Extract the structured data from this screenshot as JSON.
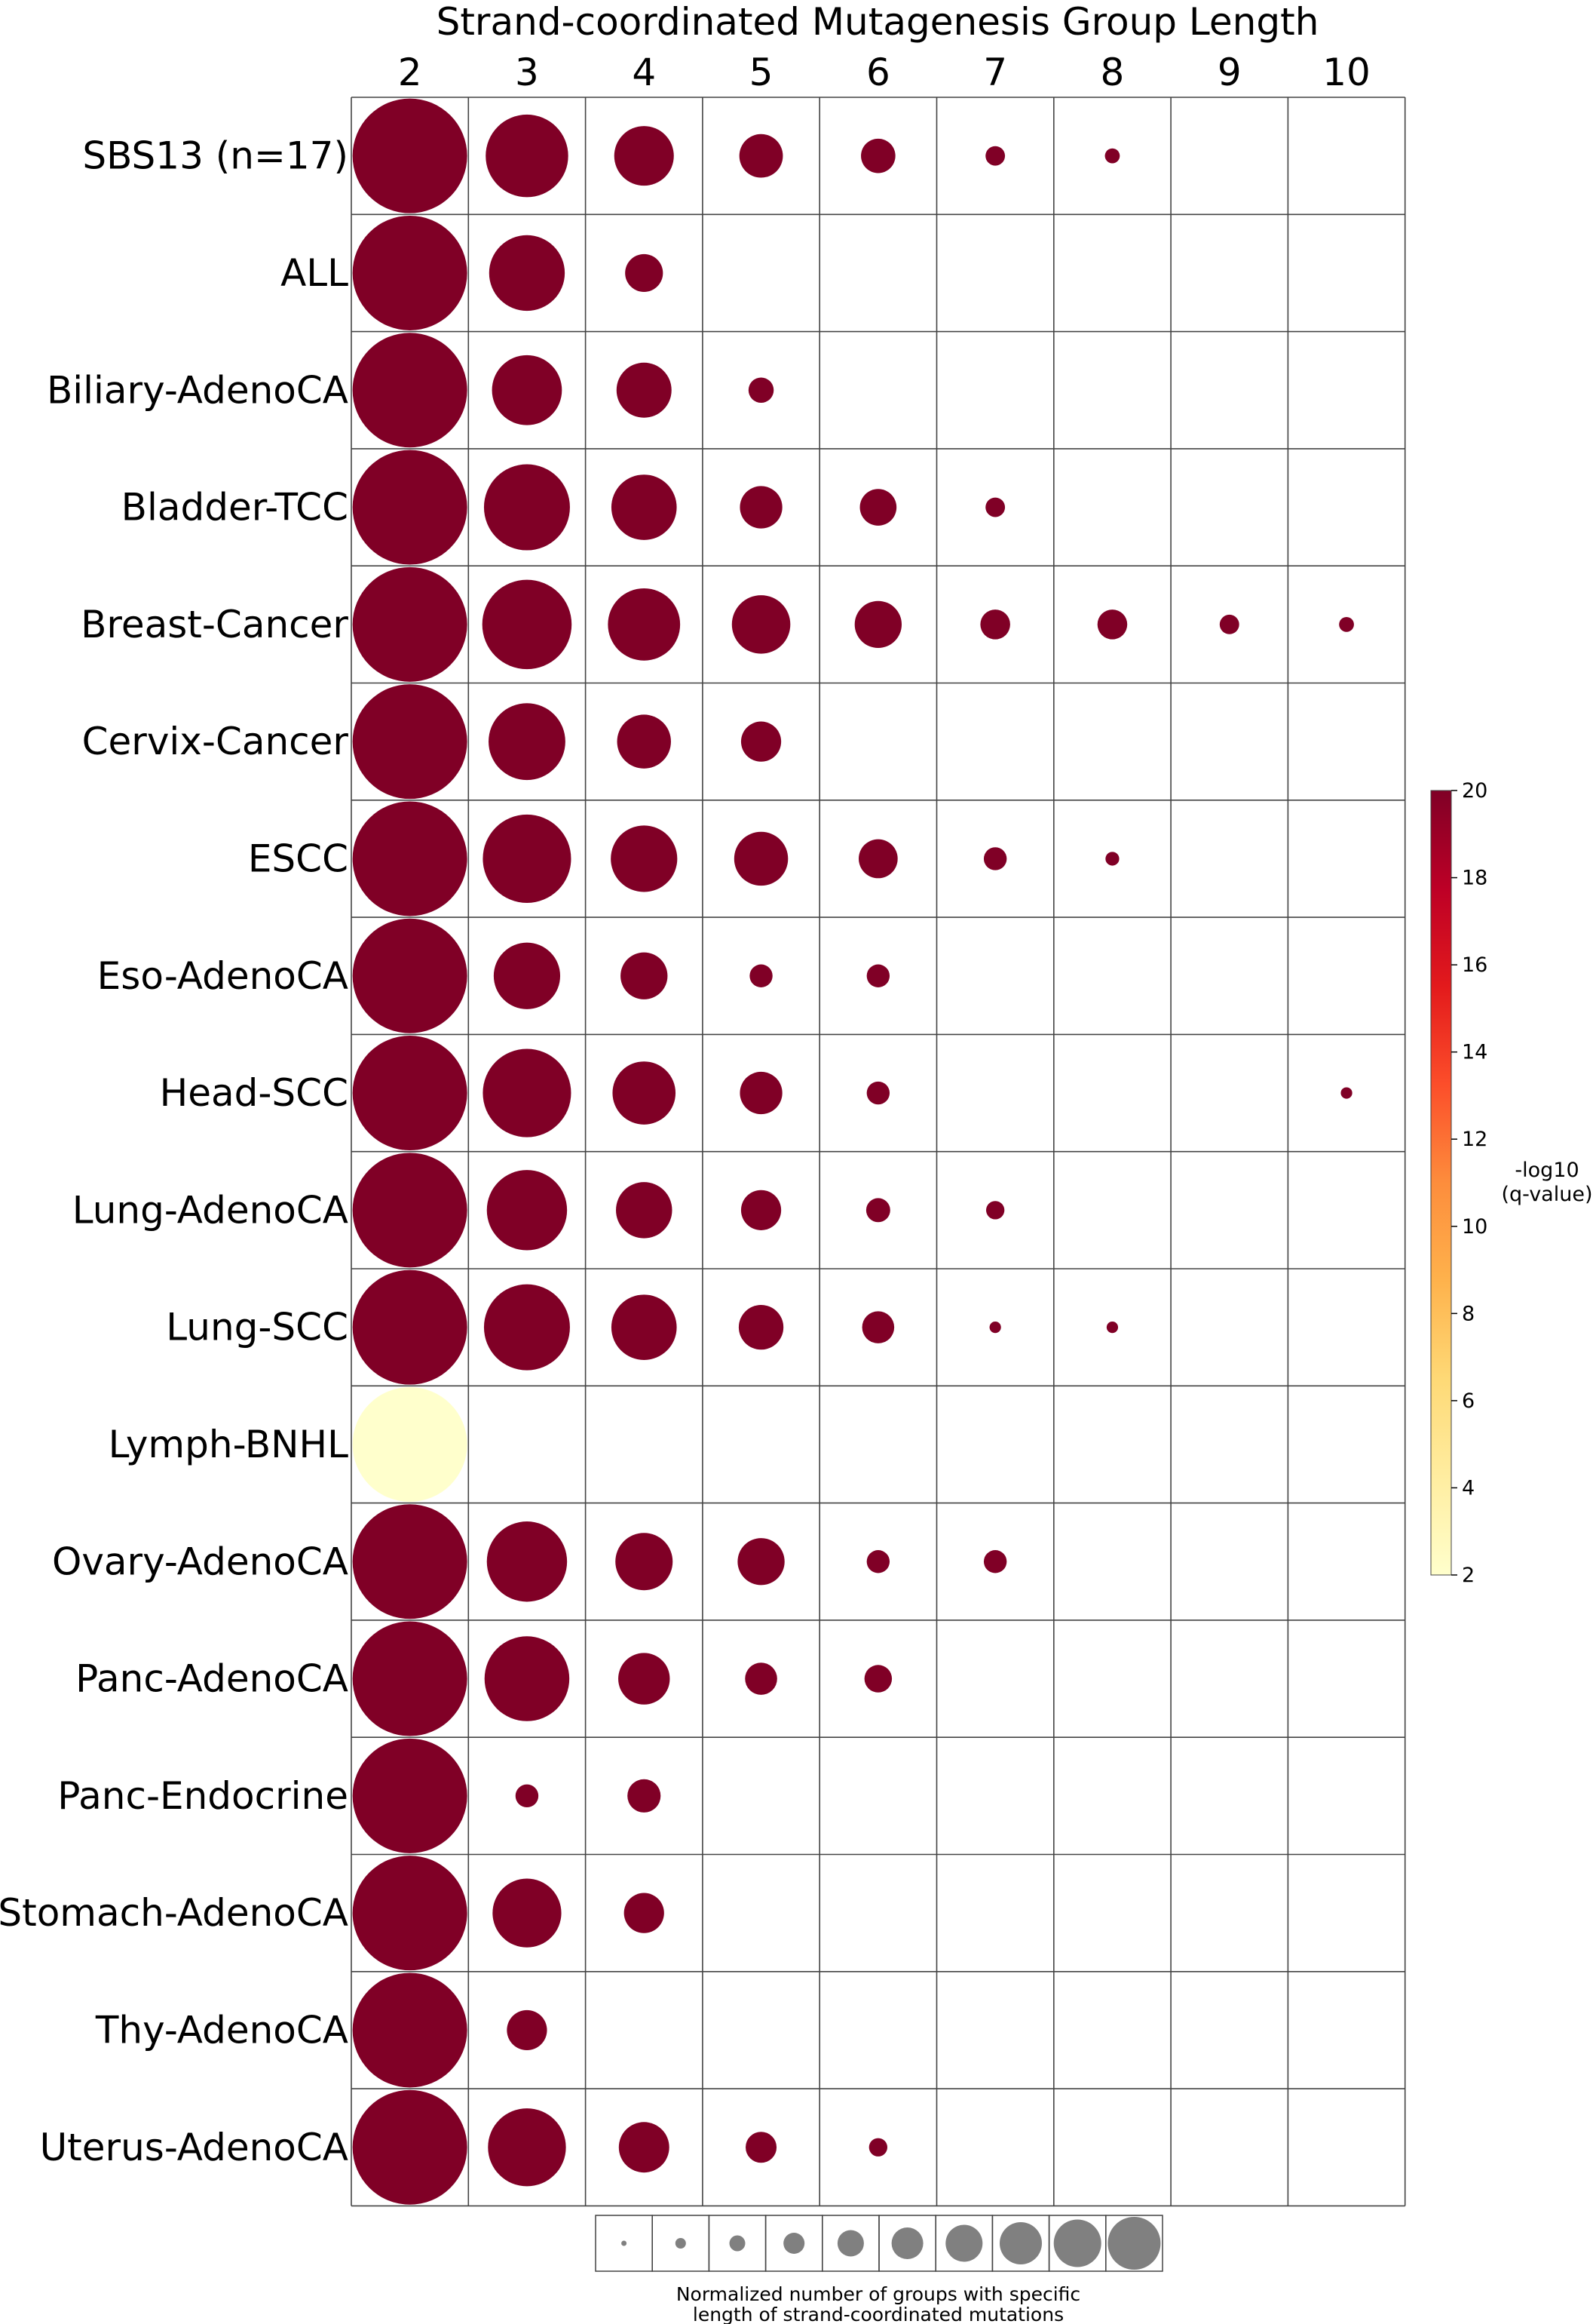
{
  "chart_data": {
    "type": "bubble-grid",
    "title": "Strand-coordinated Mutagenesis Group Length",
    "columns": [
      2,
      3,
      4,
      5,
      6,
      7,
      8,
      9,
      10
    ],
    "rows": [
      {
        "label": "SBS13 (n=17)",
        "values": [
          1.0,
          0.72,
          0.52,
          0.38,
          0.3,
          0.17,
          0.13,
          null,
          null
        ]
      },
      {
        "label": "ALL",
        "values": [
          1.0,
          0.66,
          0.33,
          null,
          null,
          null,
          null,
          null,
          null
        ]
      },
      {
        "label": "Biliary-AdenoCA",
        "values": [
          1.0,
          0.61,
          0.48,
          0.22,
          null,
          null,
          null,
          null,
          null
        ]
      },
      {
        "label": "Bladder-TCC",
        "values": [
          1.0,
          0.75,
          0.57,
          0.37,
          0.32,
          0.17,
          null,
          null,
          null
        ]
      },
      {
        "label": "Breast-Cancer",
        "values": [
          1.0,
          0.78,
          0.63,
          0.51,
          0.41,
          0.26,
          0.26,
          0.17,
          0.13
        ]
      },
      {
        "label": "Cervix-Cancer",
        "values": [
          1.0,
          0.67,
          0.47,
          0.35,
          null,
          null,
          null,
          null,
          null
        ]
      },
      {
        "label": "ESCC",
        "values": [
          1.0,
          0.77,
          0.58,
          0.47,
          0.34,
          0.2,
          0.12,
          null,
          null
        ]
      },
      {
        "label": "Eso-AdenoCA",
        "values": [
          1.0,
          0.58,
          0.41,
          0.2,
          0.2,
          null,
          null,
          null,
          null
        ]
      },
      {
        "label": "Head-SCC",
        "values": [
          1.0,
          0.77,
          0.55,
          0.37,
          0.2,
          null,
          null,
          null,
          0.1
        ]
      },
      {
        "label": "Lung-AdenoCA",
        "values": [
          1.0,
          0.7,
          0.49,
          0.35,
          0.21,
          0.16,
          null,
          null,
          null
        ]
      },
      {
        "label": "Lung-SCC",
        "values": [
          1.0,
          0.75,
          0.57,
          0.39,
          0.28,
          0.1,
          0.1,
          null,
          null
        ]
      },
      {
        "label": "Lymph-BNHL",
        "values": [
          1.0,
          null,
          null,
          null,
          null,
          null,
          null,
          null,
          null
        ],
        "q_color": "low"
      },
      {
        "label": "Ovary-AdenoCA",
        "values": [
          1.0,
          0.7,
          0.5,
          0.41,
          0.2,
          0.2,
          null,
          null,
          null
        ]
      },
      {
        "label": "Panc-AdenoCA",
        "values": [
          1.0,
          0.74,
          0.45,
          0.28,
          0.24,
          null,
          null,
          null,
          null
        ]
      },
      {
        "label": "Panc-Endocrine",
        "values": [
          1.0,
          0.2,
          0.29,
          null,
          null,
          null,
          null,
          null,
          null
        ]
      },
      {
        "label": "Stomach-AdenoCA",
        "values": [
          1.0,
          0.6,
          0.35,
          null,
          null,
          null,
          null,
          null,
          null
        ]
      },
      {
        "label": "Thy-AdenoCA",
        "values": [
          1.0,
          0.35,
          null,
          null,
          null,
          null,
          null,
          null,
          null
        ]
      },
      {
        "label": "Uterus-AdenoCA",
        "values": [
          1.0,
          0.68,
          0.44,
          0.27,
          0.16,
          null,
          null,
          null,
          null
        ]
      }
    ],
    "colorbar": {
      "title_line1": "-log10",
      "title_line2": "(q-value)",
      "min": 2,
      "max": 20,
      "ticks": [
        "2",
        "4",
        "6",
        "8",
        "10",
        "12",
        "14",
        "16",
        "18",
        "20"
      ]
    },
    "size_legend": {
      "values": [
        0.1,
        0.2,
        0.3,
        0.4,
        0.5,
        0.6,
        0.7,
        0.8,
        0.9,
        1.0
      ],
      "color": "#808080",
      "caption_line1": "Normalized number of groups with specific",
      "caption_line2": "length of strand-coordinated mutations"
    },
    "colors": {
      "high": "#800026",
      "low": "#ffffcc",
      "grid": "#444444"
    }
  }
}
